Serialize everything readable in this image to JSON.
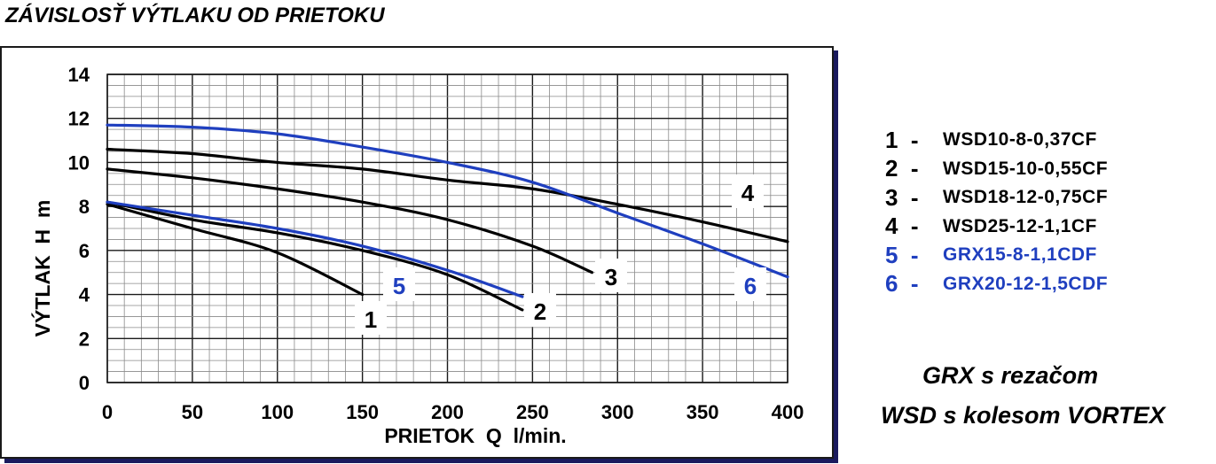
{
  "page_title": "ZÁVISLOSŤ VÝTLAKU OD PRIETOKU",
  "colors": {
    "black": "#000000",
    "blue": "#1f3fbf",
    "grid_minor": "#8a8a8a",
    "grid_major": "#1a1a1a"
  },
  "chart_data": {
    "type": "line",
    "title": "ZÁVISLOSŤ VÝTLAKU OD PRIETOKU",
    "xlabel": "PRIETOK  Q  l/min.",
    "ylabel": "VÝTLAK  H  m",
    "xlim": [
      0,
      400
    ],
    "ylim": [
      0,
      14
    ],
    "xticks": [
      0,
      50,
      100,
      150,
      200,
      250,
      300,
      350,
      400
    ],
    "yticks": [
      0,
      2,
      4,
      6,
      8,
      10,
      12,
      14
    ],
    "grid": true,
    "series": [
      {
        "label": "1",
        "name": "WSD10-8-0,37CF",
        "color": "black",
        "points": [
          [
            0,
            8.1
          ],
          [
            50,
            7.0
          ],
          [
            100,
            5.9
          ],
          [
            150,
            4.0
          ]
        ]
      },
      {
        "label": "2",
        "name": "WSD15-10-0,55CF",
        "color": "black",
        "points": [
          [
            0,
            8.2
          ],
          [
            50,
            7.4
          ],
          [
            100,
            6.8
          ],
          [
            150,
            6.0
          ],
          [
            200,
            4.9
          ],
          [
            244,
            3.3
          ]
        ]
      },
      {
        "label": "3",
        "name": "WSD18-12-0,75CF",
        "color": "black",
        "points": [
          [
            0,
            9.7
          ],
          [
            50,
            9.3
          ],
          [
            100,
            8.8
          ],
          [
            150,
            8.2
          ],
          [
            200,
            7.4
          ],
          [
            250,
            6.2
          ],
          [
            285,
            5.0
          ]
        ]
      },
      {
        "label": "4",
        "name": "WSD25-12-1,1CF",
        "color": "black",
        "points": [
          [
            0,
            10.6
          ],
          [
            50,
            10.4
          ],
          [
            100,
            10.0
          ],
          [
            150,
            9.7
          ],
          [
            200,
            9.2
          ],
          [
            250,
            8.8
          ],
          [
            300,
            8.1
          ],
          [
            350,
            7.3
          ],
          [
            400,
            6.4
          ]
        ]
      },
      {
        "label": "5",
        "name": "GRX15-8-1,1CDF",
        "color": "blue",
        "points": [
          [
            0,
            8.2
          ],
          [
            50,
            7.6
          ],
          [
            100,
            7.0
          ],
          [
            150,
            6.2
          ],
          [
            200,
            5.1
          ],
          [
            244,
            3.9
          ]
        ]
      },
      {
        "label": "6",
        "name": "GRX20-12-1,5CDF",
        "color": "blue",
        "points": [
          [
            0,
            11.7
          ],
          [
            50,
            11.6
          ],
          [
            100,
            11.3
          ],
          [
            150,
            10.7
          ],
          [
            200,
            10.0
          ],
          [
            250,
            9.1
          ],
          [
            300,
            7.7
          ],
          [
            350,
            6.3
          ],
          [
            400,
            4.8
          ]
        ]
      }
    ]
  },
  "curve_labels": [
    "1",
    "2",
    "3",
    "4",
    "5",
    "6"
  ],
  "legend": [
    {
      "num": "1  -",
      "name": "WSD10-8-0,37CF",
      "color": "black"
    },
    {
      "num": "2  -",
      "name": "WSD15-10-0,55CF",
      "color": "black"
    },
    {
      "num": "3  -",
      "name": "WSD18-12-0,75CF",
      "color": "black"
    },
    {
      "num": "4  -",
      "name": "WSD25-12-1,1CF",
      "color": "black"
    },
    {
      "num": "5  -",
      "name": "GRX15-8-1,1CDF",
      "color": "blue"
    },
    {
      "num": "6  -",
      "name": "GRX20-12-1,5CDF",
      "color": "blue"
    }
  ],
  "notes": {
    "grx": "GRX s rezačom",
    "wsd": "WSD s kolesom VORTEX"
  }
}
